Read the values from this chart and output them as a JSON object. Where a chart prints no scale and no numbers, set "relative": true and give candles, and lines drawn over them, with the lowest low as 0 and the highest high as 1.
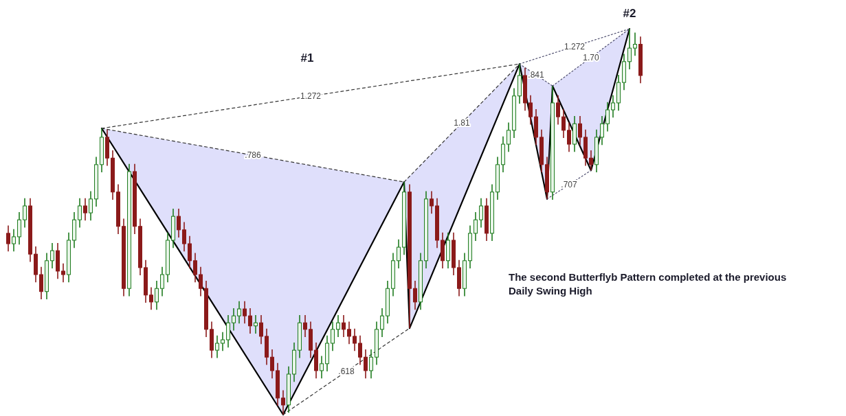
{
  "chart_data": {
    "type": "candlestick",
    "relative": true,
    "categories": [
      null,
      null,
      null,
      null,
      null,
      null,
      null,
      null,
      null,
      null,
      null,
      null,
      null,
      null,
      null,
      null,
      null,
      null,
      null,
      null,
      null,
      null,
      null,
      null,
      null,
      null,
      null,
      null,
      null,
      null,
      null,
      null,
      null,
      null,
      null,
      null,
      null,
      null,
      null,
      null,
      null,
      null,
      null,
      null,
      null,
      null,
      null,
      null,
      null,
      null,
      null,
      null,
      null,
      null,
      null,
      null,
      null,
      null,
      null,
      null,
      null,
      null,
      null,
      null,
      null,
      null,
      null,
      null,
      null,
      null,
      null,
      null,
      null,
      null,
      null,
      null,
      null,
      null,
      null,
      null,
      null,
      null,
      null,
      null,
      null,
      null,
      null,
      null,
      null,
      null,
      null,
      null,
      null,
      null,
      null,
      null,
      null,
      null,
      null,
      null,
      null,
      null,
      null,
      null,
      null,
      null,
      null,
      null,
      null,
      null,
      null,
      null,
      null,
      null,
      null,
      null
    ],
    "ohlc": [
      [
        0.47,
        0.49,
        0.423,
        0.443
      ],
      [
        0.443,
        0.481,
        0.423,
        0.461
      ],
      [
        0.461,
        0.525,
        0.441,
        0.505
      ],
      [
        0.505,
        0.561,
        0.485,
        0.541
      ],
      [
        0.541,
        0.561,
        0.396,
        0.416
      ],
      [
        0.416,
        0.436,
        0.343,
        0.363
      ],
      [
        0.363,
        0.383,
        0.299,
        0.319
      ],
      [
        0.319,
        0.419,
        0.299,
        0.399
      ],
      [
        0.399,
        0.445,
        0.379,
        0.425
      ],
      [
        0.425,
        0.445,
        0.352,
        0.372
      ],
      [
        0.372,
        0.392,
        0.343,
        0.363
      ],
      [
        0.363,
        0.472,
        0.343,
        0.452
      ],
      [
        0.452,
        0.525,
        0.432,
        0.505
      ],
      [
        0.505,
        0.561,
        0.485,
        0.541
      ],
      [
        0.541,
        0.561,
        0.503,
        0.523
      ],
      [
        0.523,
        0.579,
        0.503,
        0.559
      ],
      [
        0.559,
        0.668,
        0.539,
        0.648
      ],
      [
        0.648,
        0.742,
        0.628,
        0.719
      ],
      [
        0.719,
        0.739,
        0.645,
        0.665
      ],
      [
        0.665,
        0.685,
        0.557,
        0.577
      ],
      [
        0.577,
        0.597,
        0.468,
        0.488
      ],
      [
        0.488,
        0.508,
        0.307,
        0.327
      ],
      [
        0.327,
        0.65,
        0.307,
        0.63
      ],
      [
        0.63,
        0.65,
        0.468,
        0.488
      ],
      [
        0.488,
        0.508,
        0.361,
        0.381
      ],
      [
        0.381,
        0.401,
        0.29,
        0.31
      ],
      [
        0.31,
        0.33,
        0.272,
        0.292
      ],
      [
        0.292,
        0.347,
        0.272,
        0.327
      ],
      [
        0.327,
        0.383,
        0.307,
        0.363
      ],
      [
        0.363,
        0.472,
        0.343,
        0.452
      ],
      [
        0.452,
        0.534,
        0.432,
        0.514
      ],
      [
        0.514,
        0.534,
        0.459,
        0.479
      ],
      [
        0.479,
        0.499,
        0.423,
        0.443
      ],
      [
        0.443,
        0.463,
        0.379,
        0.399
      ],
      [
        0.399,
        0.419,
        0.343,
        0.363
      ],
      [
        0.363,
        0.383,
        0.307,
        0.327
      ],
      [
        0.327,
        0.347,
        0.201,
        0.221
      ],
      [
        0.221,
        0.241,
        0.147,
        0.167
      ],
      [
        0.167,
        0.205,
        0.147,
        0.185
      ],
      [
        0.185,
        0.214,
        0.165,
        0.194
      ],
      [
        0.194,
        0.258,
        0.174,
        0.238
      ],
      [
        0.238,
        0.276,
        0.218,
        0.256
      ],
      [
        0.256,
        0.294,
        0.236,
        0.274
      ],
      [
        0.274,
        0.294,
        0.236,
        0.256
      ],
      [
        0.256,
        0.276,
        0.21,
        0.23
      ],
      [
        0.23,
        0.258,
        0.21,
        0.238
      ],
      [
        0.238,
        0.258,
        0.183,
        0.203
      ],
      [
        0.203,
        0.223,
        0.129,
        0.149
      ],
      [
        0.149,
        0.169,
        0.094,
        0.114
      ],
      [
        0.114,
        0.134,
        0.023,
        0.043
      ],
      [
        0.043,
        0.063,
        0,
        0.025
      ],
      [
        0.025,
        0.125,
        0.005,
        0.105
      ],
      [
        0.105,
        0.187,
        0.085,
        0.167
      ],
      [
        0.167,
        0.258,
        0.147,
        0.238
      ],
      [
        0.238,
        0.258,
        0.201,
        0.221
      ],
      [
        0.221,
        0.241,
        0.147,
        0.167
      ],
      [
        0.167,
        0.187,
        0.094,
        0.114
      ],
      [
        0.114,
        0.152,
        0.094,
        0.132
      ],
      [
        0.132,
        0.205,
        0.112,
        0.185
      ],
      [
        0.185,
        0.241,
        0.165,
        0.221
      ],
      [
        0.221,
        0.258,
        0.201,
        0.238
      ],
      [
        0.238,
        0.258,
        0.201,
        0.221
      ],
      [
        0.221,
        0.241,
        0.183,
        0.203
      ],
      [
        0.203,
        0.223,
        0.165,
        0.185
      ],
      [
        0.185,
        0.205,
        0.129,
        0.149
      ],
      [
        0.149,
        0.169,
        0.094,
        0.114
      ],
      [
        0.114,
        0.169,
        0.094,
        0.149
      ],
      [
        0.149,
        0.241,
        0.129,
        0.221
      ],
      [
        0.221,
        0.276,
        0.201,
        0.256
      ],
      [
        0.256,
        0.347,
        0.236,
        0.327
      ],
      [
        0.327,
        0.419,
        0.307,
        0.399
      ],
      [
        0.399,
        0.454,
        0.379,
        0.434
      ],
      [
        0.434,
        0.603,
        0.414,
        0.577
      ],
      [
        0.577,
        0.597,
        0.224,
        0.327
      ],
      [
        0.327,
        0.347,
        0.272,
        0.292
      ],
      [
        0.292,
        0.419,
        0.272,
        0.399
      ],
      [
        0.399,
        0.579,
        0.379,
        0.559
      ],
      [
        0.559,
        0.579,
        0.521,
        0.541
      ],
      [
        0.541,
        0.561,
        0.432,
        0.452
      ],
      [
        0.452,
        0.472,
        0.379,
        0.399
      ],
      [
        0.399,
        0.472,
        0.379,
        0.452
      ],
      [
        0.452,
        0.472,
        0.361,
        0.381
      ],
      [
        0.381,
        0.401,
        0.307,
        0.327
      ],
      [
        0.327,
        0.419,
        0.307,
        0.399
      ],
      [
        0.399,
        0.49,
        0.379,
        0.47
      ],
      [
        0.47,
        0.525,
        0.45,
        0.505
      ],
      [
        0.505,
        0.561,
        0.485,
        0.541
      ],
      [
        0.541,
        0.561,
        0.45,
        0.47
      ],
      [
        0.47,
        0.597,
        0.45,
        0.577
      ],
      [
        0.577,
        0.668,
        0.557,
        0.648
      ],
      [
        0.648,
        0.721,
        0.628,
        0.701
      ],
      [
        0.701,
        0.757,
        0.681,
        0.737
      ],
      [
        0.737,
        0.846,
        0.717,
        0.826
      ],
      [
        0.826,
        0.909,
        0.806,
        0.879
      ],
      [
        0.879,
        0.899,
        0.788,
        0.808
      ],
      [
        0.808,
        0.828,
        0.752,
        0.772
      ],
      [
        0.772,
        0.792,
        0.699,
        0.719
      ],
      [
        0.719,
        0.739,
        0.628,
        0.648
      ],
      [
        0.648,
        0.668,
        0.559,
        0.577
      ],
      [
        0.577,
        0.852,
        0.557,
        0.808
      ],
      [
        0.808,
        0.828,
        0.752,
        0.772
      ],
      [
        0.772,
        0.792,
        0.717,
        0.737
      ],
      [
        0.737,
        0.757,
        0.681,
        0.701
      ],
      [
        0.701,
        0.774,
        0.681,
        0.754
      ],
      [
        0.754,
        0.774,
        0.699,
        0.719
      ],
      [
        0.719,
        0.739,
        0.645,
        0.665
      ],
      [
        0.665,
        0.685,
        0.633,
        0.648
      ],
      [
        0.648,
        0.739,
        0.628,
        0.719
      ],
      [
        0.719,
        0.774,
        0.699,
        0.754
      ],
      [
        0.754,
        0.81,
        0.734,
        0.79
      ],
      [
        0.79,
        0.828,
        0.77,
        0.808
      ],
      [
        0.808,
        0.881,
        0.788,
        0.861
      ],
      [
        0.861,
        0.935,
        0.841,
        0.915
      ],
      [
        0.915,
        1.0,
        0.895,
        0.95
      ],
      [
        0.95,
        0.99,
        0.93,
        0.96
      ],
      [
        0.96,
        0.98,
        0.859,
        0.879
      ]
    ],
    "series": [
      {
        "type": "line",
        "color": "#000000",
        "line_style": "solid",
        "values": [
          null,
          null,
          null,
          null,
          null,
          null,
          null,
          null,
          null,
          null,
          null,
          null,
          null,
          null,
          null,
          null,
          null,
          0.742,
          null,
          null,
          null,
          null,
          null,
          null,
          null,
          null,
          null,
          null,
          null,
          null,
          null,
          null,
          null,
          null,
          null,
          null,
          null,
          null,
          null,
          null,
          null,
          null,
          null,
          null,
          null,
          null,
          null,
          null,
          null,
          null,
          0,
          null,
          null,
          null,
          null,
          null,
          null,
          null,
          null,
          null,
          null,
          null,
          null,
          null,
          null,
          null,
          null,
          null,
          null,
          null,
          null,
          null,
          0.603,
          0.224,
          null,
          null,
          null,
          null,
          null,
          null,
          null,
          null,
          null,
          null,
          null,
          null,
          null,
          null,
          null,
          null,
          null,
          null,
          null,
          0.909,
          null,
          null,
          null,
          null,
          null,
          null,
          null,
          null,
          null,
          null,
          null,
          null,
          null,
          null,
          null,
          null,
          null,
          null,
          null,
          null,
          null,
          null
        ]
      },
      {
        "type": "line",
        "color": "#000000",
        "line_style": "solid",
        "values": [
          null,
          null,
          null,
          null,
          null,
          null,
          null,
          null,
          null,
          null,
          null,
          null,
          null,
          null,
          null,
          null,
          null,
          null,
          null,
          null,
          null,
          null,
          null,
          null,
          null,
          null,
          null,
          null,
          null,
          null,
          null,
          null,
          null,
          null,
          null,
          null,
          null,
          null,
          null,
          null,
          null,
          null,
          null,
          null,
          null,
          null,
          null,
          null,
          null,
          null,
          null,
          null,
          null,
          null,
          null,
          null,
          null,
          null,
          null,
          null,
          null,
          null,
          null,
          null,
          null,
          null,
          null,
          null,
          null,
          null,
          null,
          null,
          null,
          null,
          null,
          null,
          null,
          null,
          null,
          null,
          null,
          null,
          null,
          null,
          null,
          null,
          null,
          null,
          null,
          null,
          null,
          null,
          null,
          0.909,
          null,
          null,
          null,
          null,
          0.559,
          0.852,
          null,
          null,
          null,
          null,
          null,
          null,
          0.633,
          null,
          null,
          null,
          null,
          null,
          null,
          1.0,
          null,
          null
        ]
      },
      {
        "type": "line",
        "name": ".786",
        "color": "#333333",
        "line_style": "dashed",
        "values": [
          null,
          null,
          null,
          null,
          null,
          null,
          null,
          null,
          null,
          null,
          null,
          null,
          null,
          null,
          null,
          null,
          null,
          0.742,
          null,
          null,
          null,
          null,
          null,
          null,
          null,
          null,
          null,
          null,
          null,
          null,
          null,
          null,
          null,
          null,
          null,
          null,
          null,
          null,
          null,
          null,
          null,
          null,
          null,
          null,
          null,
          null,
          null,
          null,
          null,
          null,
          null,
          null,
          null,
          null,
          null,
          null,
          null,
          null,
          null,
          null,
          null,
          null,
          null,
          null,
          null,
          null,
          null,
          null,
          null,
          null,
          null,
          null,
          0.603,
          null,
          null,
          null,
          null,
          null,
          null,
          null,
          null,
          null,
          null,
          null,
          null,
          null,
          null,
          null,
          null,
          null,
          null,
          null,
          null,
          null,
          null,
          null,
          null,
          null,
          null,
          null,
          null,
          null,
          null,
          null,
          null,
          null,
          null,
          null,
          null,
          null,
          null,
          null,
          null,
          null,
          null,
          null
        ]
      },
      {
        "type": "line",
        "name": "1.81",
        "color": "#333333",
        "line_style": "dashed",
        "values": [
          null,
          null,
          null,
          null,
          null,
          null,
          null,
          null,
          null,
          null,
          null,
          null,
          null,
          null,
          null,
          null,
          null,
          null,
          null,
          null,
          null,
          null,
          null,
          null,
          null,
          null,
          null,
          null,
          null,
          null,
          null,
          null,
          null,
          null,
          null,
          null,
          null,
          null,
          null,
          null,
          null,
          null,
          null,
          null,
          null,
          null,
          null,
          null,
          null,
          null,
          null,
          null,
          null,
          null,
          null,
          null,
          null,
          null,
          null,
          null,
          null,
          null,
          null,
          null,
          null,
          null,
          null,
          null,
          null,
          null,
          null,
          null,
          0.603,
          null,
          null,
          null,
          null,
          null,
          null,
          null,
          null,
          null,
          null,
          null,
          null,
          null,
          null,
          null,
          null,
          null,
          null,
          null,
          null,
          0.909,
          null,
          null,
          null,
          null,
          null,
          null,
          null,
          null,
          null,
          null,
          null,
          null,
          null,
          null,
          null,
          null,
          null,
          null,
          null,
          null,
          null,
          null
        ]
      },
      {
        "type": "line",
        "name": "1.272",
        "color": "#333333",
        "line_style": "dashed",
        "values": [
          null,
          null,
          null,
          null,
          null,
          null,
          null,
          null,
          null,
          null,
          null,
          null,
          null,
          null,
          null,
          null,
          null,
          0.742,
          null,
          null,
          null,
          null,
          null,
          null,
          null,
          null,
          null,
          null,
          null,
          null,
          null,
          null,
          null,
          null,
          null,
          null,
          null,
          null,
          null,
          null,
          null,
          null,
          null,
          null,
          null,
          null,
          null,
          null,
          null,
          null,
          null,
          null,
          null,
          null,
          null,
          null,
          null,
          null,
          null,
          null,
          null,
          null,
          null,
          null,
          null,
          null,
          null,
          null,
          null,
          null,
          null,
          null,
          null,
          null,
          null,
          null,
          null,
          null,
          null,
          null,
          null,
          null,
          null,
          null,
          null,
          null,
          null,
          null,
          null,
          null,
          null,
          null,
          null,
          0.909,
          null,
          null,
          null,
          null,
          null,
          null,
          null,
          null,
          null,
          null,
          null,
          null,
          null,
          null,
          null,
          null,
          null,
          null,
          null,
          null,
          null,
          null
        ]
      },
      {
        "type": "line",
        "name": ".618",
        "color": "#333333",
        "line_style": "dashed",
        "values": [
          null,
          null,
          null,
          null,
          null,
          null,
          null,
          null,
          null,
          null,
          null,
          null,
          null,
          null,
          null,
          null,
          null,
          null,
          null,
          null,
          null,
          null,
          null,
          null,
          null,
          null,
          null,
          null,
          null,
          null,
          null,
          null,
          null,
          null,
          null,
          null,
          null,
          null,
          null,
          null,
          null,
          null,
          null,
          null,
          null,
          null,
          null,
          null,
          null,
          null,
          0,
          null,
          null,
          null,
          null,
          null,
          null,
          null,
          null,
          null,
          null,
          null,
          null,
          null,
          null,
          null,
          null,
          null,
          null,
          null,
          null,
          null,
          null,
          0.224,
          null,
          null,
          null,
          null,
          null,
          null,
          null,
          null,
          null,
          null,
          null,
          null,
          null,
          null,
          null,
          null,
          null,
          null,
          null,
          null,
          null,
          null,
          null,
          null,
          null,
          null,
          null,
          null,
          null,
          null,
          null,
          null,
          null,
          null,
          null,
          null,
          null,
          null,
          null,
          null,
          null,
          null
        ]
      },
      {
        "type": "line",
        "name": ".841",
        "color": "#505070",
        "line_style": "dotted",
        "values": [
          null,
          null,
          null,
          null,
          null,
          null,
          null,
          null,
          null,
          null,
          null,
          null,
          null,
          null,
          null,
          null,
          null,
          null,
          null,
          null,
          null,
          null,
          null,
          null,
          null,
          null,
          null,
          null,
          null,
          null,
          null,
          null,
          null,
          null,
          null,
          null,
          null,
          null,
          null,
          null,
          null,
          null,
          null,
          null,
          null,
          null,
          null,
          null,
          null,
          null,
          null,
          null,
          null,
          null,
          null,
          null,
          null,
          null,
          null,
          null,
          null,
          null,
          null,
          null,
          null,
          null,
          null,
          null,
          null,
          null,
          null,
          null,
          null,
          null,
          null,
          null,
          null,
          null,
          null,
          null,
          null,
          null,
          null,
          null,
          null,
          null,
          null,
          null,
          null,
          null,
          null,
          null,
          null,
          0.909,
          null,
          null,
          null,
          null,
          null,
          0.852,
          null,
          null,
          null,
          null,
          null,
          null,
          null,
          null,
          null,
          null,
          null,
          null,
          null,
          null,
          null,
          null
        ]
      },
      {
        "type": "line",
        "name": "1.70",
        "color": "#505070",
        "line_style": "dotted",
        "values": [
          null,
          null,
          null,
          null,
          null,
          null,
          null,
          null,
          null,
          null,
          null,
          null,
          null,
          null,
          null,
          null,
          null,
          null,
          null,
          null,
          null,
          null,
          null,
          null,
          null,
          null,
          null,
          null,
          null,
          null,
          null,
          null,
          null,
          null,
          null,
          null,
          null,
          null,
          null,
          null,
          null,
          null,
          null,
          null,
          null,
          null,
          null,
          null,
          null,
          null,
          null,
          null,
          null,
          null,
          null,
          null,
          null,
          null,
          null,
          null,
          null,
          null,
          null,
          null,
          null,
          null,
          null,
          null,
          null,
          null,
          null,
          null,
          null,
          null,
          null,
          null,
          null,
          null,
          null,
          null,
          null,
          null,
          null,
          null,
          null,
          null,
          null,
          null,
          null,
          null,
          null,
          null,
          null,
          null,
          null,
          null,
          null,
          null,
          null,
          0.852,
          null,
          null,
          null,
          null,
          null,
          null,
          null,
          null,
          null,
          null,
          null,
          null,
          null,
          1.0,
          null,
          null
        ]
      },
      {
        "type": "line",
        "name": "1.272",
        "color": "#505070",
        "line_style": "dotted",
        "values": [
          null,
          null,
          null,
          null,
          null,
          null,
          null,
          null,
          null,
          null,
          null,
          null,
          null,
          null,
          null,
          null,
          null,
          null,
          null,
          null,
          null,
          null,
          null,
          null,
          null,
          null,
          null,
          null,
          null,
          null,
          null,
          null,
          null,
          null,
          null,
          null,
          null,
          null,
          null,
          null,
          null,
          null,
          null,
          null,
          null,
          null,
          null,
          null,
          null,
          null,
          null,
          null,
          null,
          null,
          null,
          null,
          null,
          null,
          null,
          null,
          null,
          null,
          null,
          null,
          null,
          null,
          null,
          null,
          null,
          null,
          null,
          null,
          null,
          null,
          null,
          null,
          null,
          null,
          null,
          null,
          null,
          null,
          null,
          null,
          null,
          null,
          null,
          null,
          null,
          null,
          null,
          null,
          null,
          0.909,
          null,
          null,
          null,
          null,
          null,
          null,
          null,
          null,
          null,
          null,
          null,
          null,
          null,
          null,
          null,
          null,
          null,
          null,
          null,
          1.0,
          null,
          null
        ]
      },
      {
        "type": "line",
        "name": ".707",
        "color": "#505070",
        "line_style": "dotted",
        "values": [
          null,
          null,
          null,
          null,
          null,
          null,
          null,
          null,
          null,
          null,
          null,
          null,
          null,
          null,
          null,
          null,
          null,
          null,
          null,
          null,
          null,
          null,
          null,
          null,
          null,
          null,
          null,
          null,
          null,
          null,
          null,
          null,
          null,
          null,
          null,
          null,
          null,
          null,
          null,
          null,
          null,
          null,
          null,
          null,
          null,
          null,
          null,
          null,
          null,
          null,
          null,
          null,
          null,
          null,
          null,
          null,
          null,
          null,
          null,
          null,
          null,
          null,
          null,
          null,
          null,
          null,
          null,
          null,
          null,
          null,
          null,
          null,
          null,
          null,
          null,
          null,
          null,
          null,
          null,
          null,
          null,
          null,
          null,
          null,
          null,
          null,
          null,
          null,
          null,
          null,
          null,
          null,
          null,
          null,
          null,
          null,
          null,
          null,
          0.559,
          null,
          null,
          null,
          null,
          null,
          null,
          null,
          0.633,
          null,
          null,
          null,
          null,
          null,
          null,
          null,
          null,
          null
        ]
      }
    ],
    "annotations": [
      "#1",
      "#2",
      "The second Butterflyb Pattern completed at the previous Daily Swing High"
    ]
  }
}
